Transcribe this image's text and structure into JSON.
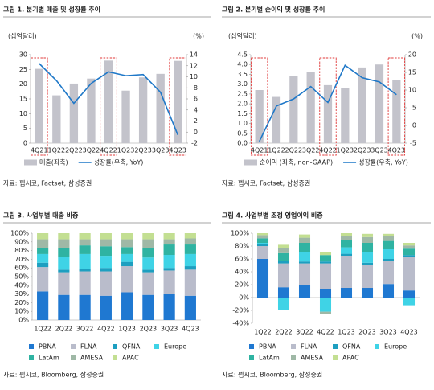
{
  "chart_data": [
    {
      "type": "combo",
      "title": "그림 1. 분기별 매출 및 성장률 추이",
      "y_label": "(십억달러)",
      "y2_label": "(%)",
      "categories": [
        "4Q21",
        "1Q22",
        "2Q22",
        "3Q22",
        "4Q22",
        "1Q23",
        "2Q23",
        "3Q23",
        "4Q23"
      ],
      "series": [
        {
          "name": "매출(좌축)",
          "color": "#c3c3cb",
          "values": [
            25.2,
            16.2,
            20.2,
            21.9,
            28.0,
            17.8,
            22.3,
            23.5,
            27.9
          ]
        },
        {
          "name": "성장률(우축, YoY)",
          "color": "#1f78c8",
          "axis": "y2",
          "values": [
            12.4,
            9.3,
            5.2,
            8.8,
            10.9,
            10.2,
            10.4,
            7.2,
            -0.5
          ]
        }
      ],
      "ylim": [
        0,
        30
      ],
      "yticks": [
        0,
        5,
        10,
        15,
        20,
        25,
        30
      ],
      "y2lim": [
        -2,
        14
      ],
      "y2ticks": [
        -2,
        0,
        2,
        4,
        6,
        8,
        10,
        12,
        14
      ],
      "grid": false,
      "highlight": [
        0,
        4,
        8
      ],
      "highlight_color": "#e03a3a",
      "source": "자료: 펩시코, Factset, 삼성증권"
    },
    {
      "type": "combo",
      "title": "그림 2. 분기별 순이익 및 성장률 추이",
      "y_label": "(십억달러)",
      "y2_label": "(%)",
      "categories": [
        "4Q21",
        "1Q22",
        "2Q22",
        "3Q22",
        "4Q22",
        "1Q23",
        "2Q23",
        "3Q23",
        "4Q23"
      ],
      "series": [
        {
          "name": "순이익 (좌축, non-GAAP)",
          "color": "#c3c3cb",
          "values": [
            2.7,
            2.35,
            3.4,
            3.6,
            2.95,
            2.8,
            3.85,
            4.0,
            3.2
          ]
        },
        {
          "name": "성장률(우축, YoY)",
          "color": "#1f78c8",
          "axis": "y2",
          "values": [
            -4.5,
            5.5,
            7.5,
            11,
            6.5,
            17,
            13.5,
            12.3,
            8.7
          ]
        }
      ],
      "ylim": [
        0,
        4.5
      ],
      "yticks": [
        {
          "value": 0,
          "label": "0.0"
        },
        0.5,
        {
          "value": 1,
          "label": "1.0"
        },
        1.5,
        {
          "value": 2,
          "label": "2.0"
        },
        2.5,
        {
          "value": 3,
          "label": "3.0"
        },
        3.5,
        {
          "value": 4,
          "label": "4.0"
        },
        4.5
      ],
      "y2lim": [
        -5,
        20
      ],
      "y2ticks": [
        -5,
        0,
        5,
        10,
        15,
        20
      ],
      "grid": false,
      "highlight": [
        0,
        4,
        8
      ],
      "highlight_color": "#e03a3a",
      "source": "자료: 펩시코, Factset, 삼성증권"
    },
    {
      "type": "stacked",
      "title": "그림 3. 사업부별 매출 비중",
      "categories": [
        "1Q22",
        "2Q22",
        "3Q22",
        "4Q22",
        "1Q23",
        "2Q23",
        "3Q23",
        "4Q23"
      ],
      "series": [
        {
          "name": "PBNA",
          "color": "#1f78d1",
          "values": [
            33,
            29,
            29,
            28,
            32,
            29,
            30,
            28
          ]
        },
        {
          "name": "FLNA",
          "color": "#b9bccb",
          "values": [
            28,
            26,
            27,
            28,
            30,
            26,
            27,
            30
          ]
        },
        {
          "name": "QFNA",
          "color": "#1d9fc0",
          "values": [
            5,
            3,
            3,
            4,
            5,
            3,
            3,
            4
          ]
        },
        {
          "name": "Europe",
          "color": "#3fd3e6",
          "values": [
            10,
            15,
            17,
            14,
            9,
            14,
            15,
            14
          ]
        },
        {
          "name": "LatAm",
          "color": "#2fb3a2",
          "values": [
            7,
            10,
            10,
            11,
            8,
            11,
            12,
            11
          ]
        },
        {
          "name": "AMESA",
          "color": "#9fb8a6",
          "values": [
            10,
            10,
            7,
            8,
            9,
            10,
            6,
            7
          ]
        },
        {
          "name": "APAC",
          "color": "#c3df92",
          "values": [
            7,
            7,
            7,
            7,
            7,
            7,
            7,
            6
          ]
        }
      ],
      "ylim": [
        0,
        100
      ],
      "yticks": [
        {
          "value": 0,
          "label": "0%"
        },
        {
          "value": 10,
          "label": "10%"
        },
        {
          "value": 20,
          "label": "20%"
        },
        {
          "value": 30,
          "label": "30%"
        },
        {
          "value": 40,
          "label": "40%"
        },
        {
          "value": 50,
          "label": "50%"
        },
        {
          "value": 60,
          "label": "60%"
        },
        {
          "value": 70,
          "label": "70%"
        },
        {
          "value": 80,
          "label": "80%"
        },
        {
          "value": 90,
          "label": "90%"
        },
        {
          "value": 100,
          "label": "100%"
        }
      ],
      "grid": false,
      "source": "자료: 펩시코, Bloomberg, 삼성증권"
    },
    {
      "type": "stacked",
      "title": "그림 4. 사업부별 조정 영업이익 비중",
      "categories": [
        "1Q22",
        "2Q22",
        "3Q22",
        "4Q22",
        "1Q23",
        "2Q23",
        "3Q23",
        "4Q23"
      ],
      "series": [
        {
          "name": "PBNA",
          "color": "#1f78d1",
          "values": [
            60,
            16,
            19,
            13,
            15,
            15,
            21,
            11
          ]
        },
        {
          "name": "FLNA",
          "color": "#b9bccb",
          "values": [
            20,
            37,
            34,
            40,
            50,
            36,
            36,
            52
          ]
        },
        {
          "name": "QFNA",
          "color": "#1d9fc0",
          "values": [
            3,
            4,
            3,
            3,
            3,
            3,
            3,
            3
          ]
        },
        {
          "name": "Europe",
          "color": "#3fd3e6",
          "values": [
            2,
            -20,
            15,
            -22,
            10,
            17,
            15,
            -12
          ]
        },
        {
          "name": "LatAm",
          "color": "#2fb3a2",
          "values": [
            7,
            12,
            14,
            10,
            12,
            14,
            13,
            10
          ]
        },
        {
          "name": "AMESA",
          "color": "#9fb8a6",
          "values": [
            5,
            8,
            8,
            -4,
            6,
            9,
            7,
            5
          ]
        },
        {
          "name": "APAC",
          "color": "#c3df92",
          "values": [
            3,
            5,
            5,
            4,
            4,
            5,
            4,
            4
          ]
        }
      ],
      "ylim": [
        -40,
        100
      ],
      "yticks": [
        {
          "value": -40,
          "label": "-40%"
        },
        {
          "value": -20,
          "label": "-20%"
        },
        {
          "value": 0,
          "label": "0%"
        },
        {
          "value": 20,
          "label": "20%"
        },
        {
          "value": 40,
          "label": "40%"
        },
        {
          "value": 60,
          "label": "60%"
        },
        {
          "value": 80,
          "label": "80%"
        },
        {
          "value": 100,
          "label": "100%"
        }
      ],
      "grid": false,
      "source": "자료: 펩시코, Bloomberg, 삼성증권"
    }
  ]
}
